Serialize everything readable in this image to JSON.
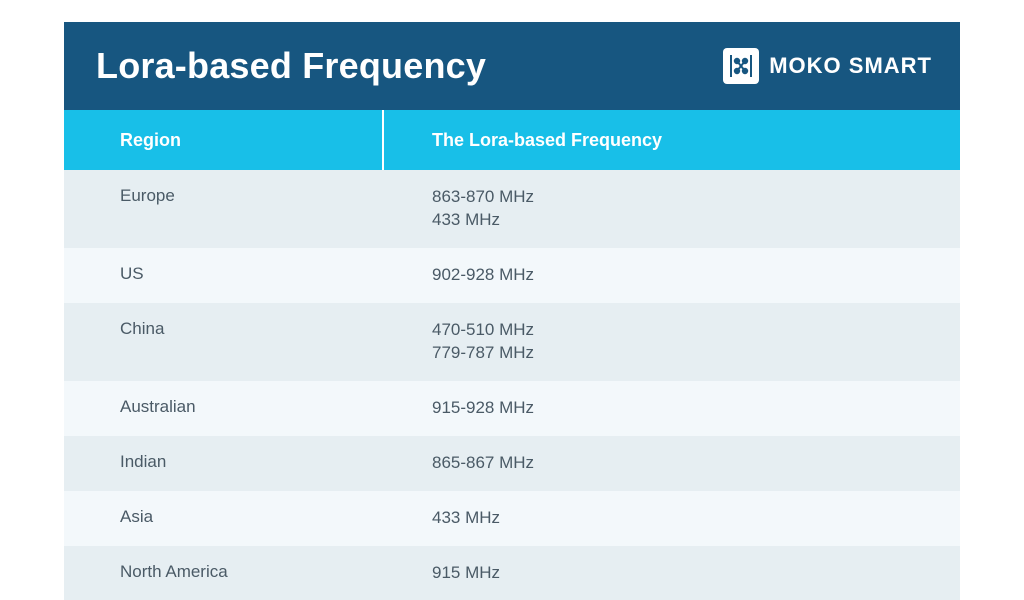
{
  "colors": {
    "title_bg": "#175680",
    "header_bg": "#18bfe8",
    "row_alt1": "#e6eef2",
    "row_alt2": "#f3f8fb",
    "title_text": "#ffffff",
    "header_text": "#ffffff",
    "body_text": "#4a5a66",
    "logo_stroke": "#175680"
  },
  "title": "Lora-based Frequency",
  "brand": {
    "name": "MOKO SMART"
  },
  "columns": {
    "region": "Region",
    "frequency": "The Lora-based Frequency"
  },
  "rows": [
    {
      "region": "Europe",
      "frequency": "863-870 MHz\n433 MHz"
    },
    {
      "region": "US",
      "frequency": "902-928 MHz"
    },
    {
      "region": "China",
      "frequency": "470-510 MHz\n779-787 MHz"
    },
    {
      "region": "Australian",
      "frequency": "915-928 MHz"
    },
    {
      "region": "Indian",
      "frequency": "865-867 MHz"
    },
    {
      "region": "Asia",
      "frequency": "433 MHz"
    },
    {
      "region": "North America",
      "frequency": "915 MHz"
    }
  ]
}
